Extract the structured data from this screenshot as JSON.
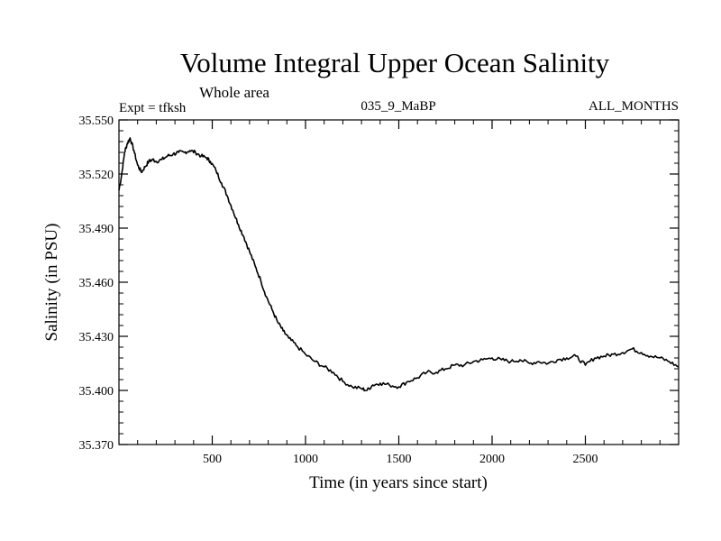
{
  "chart_data": {
    "type": "line",
    "title": "Volume Integral Upper Ocean Salinity",
    "subtitle": "Whole area",
    "experiment": "Expt = tfksh",
    "run_label": "035_9_MaBP",
    "months_label": "ALL_MONTHS",
    "xlabel": "Time (in years since start)",
    "ylabel": "Salinity (in PSU)",
    "xlim": [
      0,
      3000
    ],
    "ylim": [
      35.37,
      35.55
    ],
    "xticks": [
      500,
      1000,
      1500,
      2000,
      2500
    ],
    "yticks": [
      "35.370",
      "35.400",
      "35.430",
      "35.460",
      "35.490",
      "35.520",
      "35.550"
    ],
    "grid": false,
    "series": [
      {
        "name": "salinity",
        "color": "#000000",
        "x": [
          0,
          15,
          30,
          45,
          60,
          80,
          100,
          120,
          140,
          160,
          180,
          200,
          230,
          260,
          290,
          320,
          350,
          380,
          410,
          440,
          470,
          490,
          520,
          550,
          580,
          610,
          640,
          670,
          700,
          730,
          760,
          790,
          820,
          850,
          880,
          910,
          950,
          1000,
          1050,
          1100,
          1150,
          1200,
          1250,
          1300,
          1330,
          1360,
          1400,
          1450,
          1500,
          1550,
          1600,
          1650,
          1700,
          1750,
          1800,
          1850,
          1900,
          1950,
          2000,
          2050,
          2100,
          2150,
          2200,
          2250,
          2300,
          2350,
          2400,
          2450,
          2500,
          2550,
          2600,
          2650,
          2700,
          2750,
          2800,
          2850,
          2900,
          2950,
          3000
        ],
        "values": [
          35.511,
          35.52,
          35.532,
          35.537,
          35.54,
          35.533,
          35.525,
          35.521,
          35.524,
          35.527,
          35.528,
          35.527,
          35.528,
          35.53,
          35.531,
          35.532,
          35.532,
          35.533,
          35.532,
          35.53,
          35.529,
          35.527,
          35.522,
          35.515,
          35.508,
          35.5,
          35.492,
          35.485,
          35.477,
          35.469,
          35.461,
          35.452,
          35.445,
          35.438,
          35.433,
          35.429,
          35.425,
          35.42,
          35.416,
          35.413,
          35.41,
          35.405,
          35.402,
          35.401,
          35.4,
          35.403,
          35.404,
          35.403,
          35.402,
          35.405,
          35.407,
          35.41,
          35.41,
          35.412,
          35.414,
          35.414,
          35.416,
          35.417,
          35.418,
          35.417,
          35.416,
          35.417,
          35.415,
          35.416,
          35.415,
          35.417,
          35.418,
          35.419,
          35.414,
          35.418,
          35.419,
          35.42,
          35.421,
          35.423,
          35.421,
          35.419,
          35.418,
          35.416,
          35.413
        ]
      }
    ]
  }
}
